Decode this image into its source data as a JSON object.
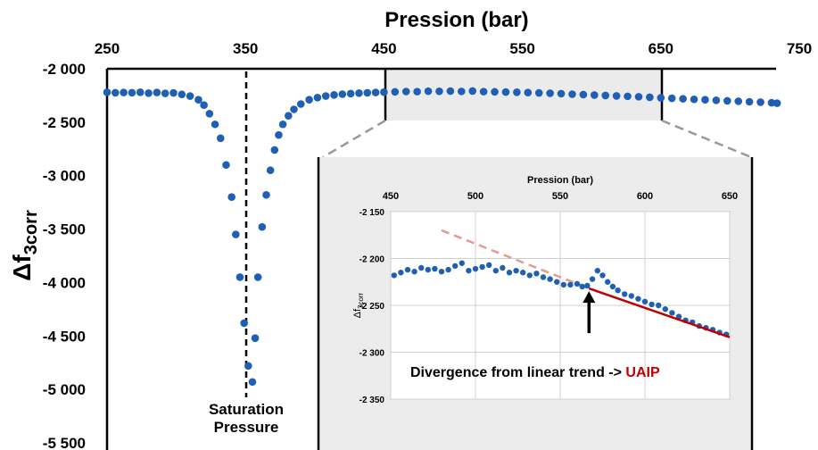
{
  "chart_data": [
    {
      "type": "scatter",
      "title": "Pression (bar)",
      "xlabel": "Pression (bar)",
      "ylabel": "Δf3corr",
      "xlim": [
        250,
        750
      ],
      "ylim": [
        -5500,
        -2000
      ],
      "x_ticks": [
        "250",
        "350",
        "450",
        "550",
        "650",
        "750"
      ],
      "y_ticks": [
        "-2 000",
        "-2 500",
        "-3 000",
        "-3 500",
        "-4 000",
        "-4 500",
        "-5 000",
        "-5 500"
      ],
      "x_axis_position": "top",
      "marker_color": "#1f5fb4",
      "grid": false,
      "annotations": [
        {
          "text_line1": "Saturation",
          "text_line2": "Pressure",
          "x": 350
        }
      ],
      "zoom_region": {
        "x_from": 450,
        "x_to": 650
      },
      "series": [
        {
          "points": [
            [
              250,
              -2220
            ],
            [
              256,
              -2225
            ],
            [
              262,
              -2222
            ],
            [
              268,
              -2224
            ],
            [
              274,
              -2220
            ],
            [
              280,
              -2228
            ],
            [
              286,
              -2222
            ],
            [
              292,
              -2230
            ],
            [
              298,
              -2226
            ],
            [
              304,
              -2240
            ],
            [
              310,
              -2255
            ],
            [
              316,
              -2290
            ],
            [
              320,
              -2340
            ],
            [
              324,
              -2420
            ],
            [
              328,
              -2520
            ],
            [
              332,
              -2650
            ],
            [
              336,
              -2900
            ],
            [
              340,
              -3200
            ],
            [
              343,
              -3550
            ],
            [
              346,
              -3950
            ],
            [
              349,
              -4380
            ],
            [
              352,
              -4780
            ],
            [
              355,
              -4930
            ],
            [
              357,
              -4520
            ],
            [
              359,
              -3950
            ],
            [
              362,
              -3480
            ],
            [
              365,
              -3180
            ],
            [
              368,
              -2950
            ],
            [
              371,
              -2760
            ],
            [
              374,
              -2620
            ],
            [
              377,
              -2520
            ],
            [
              381,
              -2440
            ],
            [
              385,
              -2380
            ],
            [
              390,
              -2330
            ],
            [
              396,
              -2290
            ],
            [
              402,
              -2270
            ],
            [
              408,
              -2255
            ],
            [
              414,
              -2245
            ],
            [
              420,
              -2238
            ],
            [
              426,
              -2232
            ],
            [
              432,
              -2228
            ],
            [
              438,
              -2225
            ],
            [
              444,
              -2222
            ],
            [
              450,
              -2219
            ],
            [
              458,
              -2216
            ],
            [
              466,
              -2213
            ],
            [
              474,
              -2214
            ],
            [
              482,
              -2210
            ],
            [
              490,
              -2211
            ],
            [
              498,
              -2209
            ],
            [
              506,
              -2212
            ],
            [
              514,
              -2208
            ],
            [
              522,
              -2214
            ],
            [
              530,
              -2216
            ],
            [
              538,
              -2218
            ],
            [
              546,
              -2220
            ],
            [
              554,
              -2223
            ],
            [
              562,
              -2226
            ],
            [
              570,
              -2229
            ],
            [
              578,
              -2233
            ],
            [
              586,
              -2238
            ],
            [
              594,
              -2242
            ],
            [
              602,
              -2246
            ],
            [
              610,
              -2250
            ],
            [
              618,
              -2254
            ],
            [
              626,
              -2258
            ],
            [
              634,
              -2262
            ],
            [
              642,
              -2267
            ],
            [
              650,
              -2272
            ],
            [
              658,
              -2276
            ],
            [
              666,
              -2281
            ],
            [
              674,
              -2286
            ],
            [
              682,
              -2290
            ],
            [
              690,
              -2295
            ],
            [
              698,
              -2300
            ],
            [
              706,
              -2304
            ],
            [
              714,
              -2309
            ],
            [
              722,
              -2313
            ],
            [
              730,
              -2318
            ],
            [
              734,
              -2322
            ]
          ]
        }
      ]
    },
    {
      "type": "scatter",
      "title": "Pression (bar)",
      "xlabel": "Pression (bar)",
      "ylabel": "Δf3corr",
      "xlim": [
        450,
        650
      ],
      "ylim": [
        -2350,
        -2150
      ],
      "x_ticks": [
        "450",
        "500",
        "550",
        "600",
        "650"
      ],
      "y_ticks": [
        "-2 150",
        "-2 200",
        "-2 250",
        "-2 300",
        "-2 350"
      ],
      "x_axis_position": "top",
      "grid": true,
      "marker_color": "#1f5fb4",
      "annotation": {
        "prefix": "Divergence from linear trend -> ",
        "highlight": "UAIP",
        "highlight_color": "#c00000",
        "arrow_x": 567,
        "arrow_y": -2232
      },
      "trend_line": {
        "dashed_color": "#e39a8c",
        "solid_color": "#c00000",
        "from": [
          480,
          -2170
        ],
        "break": [
          567,
          -2232
        ],
        "to": [
          650,
          -2284
        ]
      },
      "series": [
        {
          "points": [
            [
              452,
              -2218
            ],
            [
              456,
              -2215
            ],
            [
              460,
              -2212
            ],
            [
              464,
              -2214
            ],
            [
              468,
              -2210
            ],
            [
              472,
              -2212
            ],
            [
              476,
              -2211
            ],
            [
              480,
              -2214
            ],
            [
              484,
              -2212
            ],
            [
              488,
              -2208
            ],
            [
              492,
              -2205
            ],
            [
              496,
              -2213
            ],
            [
              500,
              -2211
            ],
            [
              504,
              -2209
            ],
            [
              508,
              -2207
            ],
            [
              512,
              -2213
            ],
            [
              516,
              -2210
            ],
            [
              520,
              -2215
            ],
            [
              524,
              -2213
            ],
            [
              528,
              -2215
            ],
            [
              532,
              -2218
            ],
            [
              536,
              -2216
            ],
            [
              540,
              -2220
            ],
            [
              544,
              -2222
            ],
            [
              548,
              -2225
            ],
            [
              552,
              -2228
            ],
            [
              556,
              -2228
            ],
            [
              560,
              -2227
            ],
            [
              563,
              -2230
            ],
            [
              566,
              -2229
            ],
            [
              569,
              -2222
            ],
            [
              572,
              -2213
            ],
            [
              575,
              -2218
            ],
            [
              578,
              -2225
            ],
            [
              581,
              -2230
            ],
            [
              584,
              -2234
            ],
            [
              588,
              -2238
            ],
            [
              592,
              -2240
            ],
            [
              596,
              -2243
            ],
            [
              600,
              -2246
            ],
            [
              604,
              -2249
            ],
            [
              608,
              -2250
            ],
            [
              612,
              -2254
            ],
            [
              616,
              -2258
            ],
            [
              620,
              -2262
            ],
            [
              624,
              -2266
            ],
            [
              628,
              -2268
            ],
            [
              632,
              -2272
            ],
            [
              636,
              -2274
            ],
            [
              640,
              -2276
            ],
            [
              644,
              -2279
            ],
            [
              648,
              -2281
            ]
          ]
        }
      ]
    }
  ]
}
